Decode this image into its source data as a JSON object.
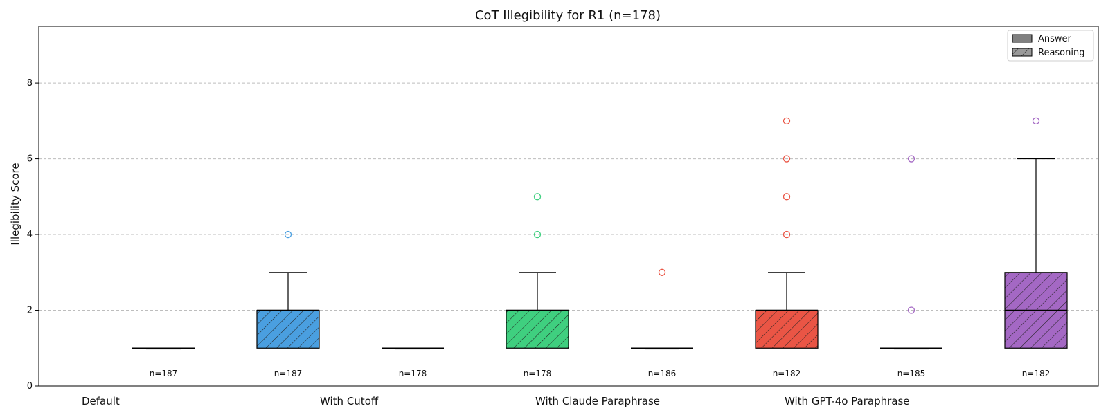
{
  "chart_data": {
    "type": "boxplot",
    "title": "CoT Illegibility for R1 (n=178)",
    "ylabel": "Illegibility Score",
    "xlabel": "",
    "ylim": [
      0,
      9.5
    ],
    "yticks": [
      0,
      2,
      4,
      6,
      8
    ],
    "grid": "y-dashed",
    "legend": {
      "position": "top-right",
      "entries": [
        {
          "label": "Answer",
          "hatch": false
        },
        {
          "label": "Reasoning",
          "hatch": true
        }
      ]
    },
    "groups": [
      "Default",
      "With Cutoff",
      "With Claude Paraphrase",
      "With GPT-4o Paraphrase"
    ],
    "boxes": [
      {
        "group": "Default",
        "kind": "Answer",
        "color": "#4a9fe0",
        "n_label": "n=187",
        "min": 1,
        "q1": 1,
        "median": 1,
        "q3": 1,
        "max": 1,
        "outliers": []
      },
      {
        "group": "Default",
        "kind": "Reasoning",
        "color": "#4a9fe0",
        "n_label": "n=187",
        "min": 1,
        "q1": 1,
        "median": 2,
        "q3": 2,
        "max": 3,
        "outliers": [
          4
        ]
      },
      {
        "group": "With Cutoff",
        "kind": "Answer",
        "color": "#3fcf7f",
        "n_label": "n=178",
        "min": 1,
        "q1": 1,
        "median": 1,
        "q3": 1,
        "max": 1,
        "outliers": []
      },
      {
        "group": "With Cutoff",
        "kind": "Reasoning",
        "color": "#3fcf7f",
        "n_label": "n=178",
        "min": 1,
        "q1": 1,
        "median": 2,
        "q3": 2,
        "max": 3,
        "outliers": [
          4,
          5
        ]
      },
      {
        "group": "With Claude Paraphrase",
        "kind": "Answer",
        "color": "#ea5545",
        "n_label": "n=186",
        "min": 1,
        "q1": 1,
        "median": 1,
        "q3": 1,
        "max": 1,
        "outliers": [
          3
        ]
      },
      {
        "group": "With Claude Paraphrase",
        "kind": "Reasoning",
        "color": "#ea5545",
        "n_label": "n=182",
        "min": 1,
        "q1": 1,
        "median": 2,
        "q3": 2,
        "max": 3,
        "outliers": [
          4,
          5,
          6,
          7
        ]
      },
      {
        "group": "With GPT-4o Paraphrase",
        "kind": "Answer",
        "color": "#a468c4",
        "n_label": "n=185",
        "min": 1,
        "q1": 1,
        "median": 1,
        "q3": 1,
        "max": 1,
        "outliers": [
          2,
          6
        ]
      },
      {
        "group": "With GPT-4o Paraphrase",
        "kind": "Reasoning",
        "color": "#a468c4",
        "n_label": "n=182",
        "min": 1,
        "q1": 1,
        "median": 2,
        "q3": 3,
        "max": 6,
        "outliers": [
          7
        ]
      }
    ]
  }
}
